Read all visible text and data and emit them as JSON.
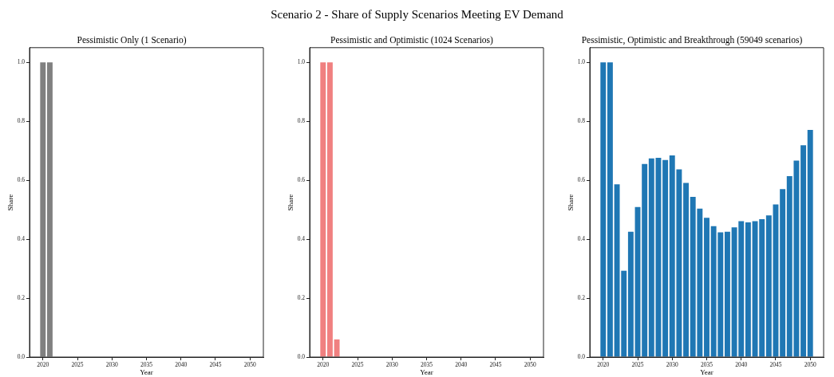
{
  "chart_data": [
    {
      "type": "other",
      "title": "Scenario 2 - Share of Supply Scenarios Meeting EV Demand"
    },
    {
      "type": "bar",
      "title": "Pessimistic Only (1 Scenario)",
      "xlabel": "Year",
      "ylabel": "Share",
      "x": [
        2020,
        2021,
        2022,
        2023,
        2024,
        2025,
        2026,
        2027,
        2028,
        2029,
        2030,
        2031,
        2032,
        2033,
        2034,
        2035,
        2036,
        2037,
        2038,
        2039,
        2040,
        2041,
        2042,
        2043,
        2044,
        2045,
        2046,
        2047,
        2048,
        2049,
        2050
      ],
      "values": [
        1,
        1,
        0,
        0,
        0,
        0,
        0,
        0,
        0,
        0,
        0,
        0,
        0,
        0,
        0,
        0,
        0,
        0,
        0,
        0,
        0,
        0,
        0,
        0,
        0,
        0,
        0,
        0,
        0,
        0,
        0
      ],
      "color": "#808080",
      "xlim": [
        2018.06,
        2051.94
      ],
      "xticks": [
        2020,
        2025,
        2030,
        2035,
        2040,
        2045,
        2050
      ],
      "ylim": [
        0,
        1.05
      ],
      "yticks": [
        {
          "value": 0,
          "label": "0.0"
        },
        {
          "value": 0.2,
          "label": "0.2"
        },
        {
          "value": 0.4,
          "label": "0.4"
        },
        {
          "value": 0.6,
          "label": "0.6"
        },
        {
          "value": 0.8,
          "label": "0.8"
        },
        {
          "value": 1,
          "label": "1.0"
        }
      ]
    },
    {
      "type": "bar",
      "title": "Pessimistic and Optimistic (1024 Scenarios)",
      "xlabel": "Year",
      "ylabel": "Share",
      "x": [
        2020,
        2021,
        2022,
        2023,
        2024,
        2025,
        2026,
        2027,
        2028,
        2029,
        2030,
        2031,
        2032,
        2033,
        2034,
        2035,
        2036,
        2037,
        2038,
        2039,
        2040,
        2041,
        2042,
        2043,
        2044,
        2045,
        2046,
        2047,
        2048,
        2049,
        2050
      ],
      "values": [
        1,
        1,
        0.06,
        0,
        0,
        0,
        0,
        0,
        0,
        0,
        0,
        0,
        0,
        0,
        0,
        0,
        0,
        0,
        0,
        0,
        0,
        0,
        0,
        0,
        0,
        0,
        0,
        0,
        0,
        0,
        0
      ],
      "color": "#f08080",
      "xlim": [
        2018.06,
        2051.94
      ],
      "xticks": [
        2020,
        2025,
        2030,
        2035,
        2040,
        2045,
        2050
      ],
      "ylim": [
        0,
        1.05
      ],
      "yticks": [
        {
          "value": 0,
          "label": "0.0"
        },
        {
          "value": 0.2,
          "label": "0.2"
        },
        {
          "value": 0.4,
          "label": "0.4"
        },
        {
          "value": 0.6,
          "label": "0.6"
        },
        {
          "value": 0.8,
          "label": "0.8"
        },
        {
          "value": 1,
          "label": "1.0"
        }
      ]
    },
    {
      "type": "bar",
      "title": "Pessimistic, Optimistic and Breakthrough (59049 scenarios)",
      "xlabel": "Year",
      "ylabel": "Share",
      "x": [
        2020,
        2021,
        2022,
        2023,
        2024,
        2025,
        2026,
        2027,
        2028,
        2029,
        2030,
        2031,
        2032,
        2033,
        2034,
        2035,
        2036,
        2037,
        2038,
        2039,
        2040,
        2041,
        2042,
        2043,
        2044,
        2045,
        2046,
        2047,
        2048,
        2049,
        2050
      ],
      "values": [
        1,
        1,
        0.586,
        0.293,
        0.425,
        0.509,
        0.655,
        0.674,
        0.676,
        0.669,
        0.684,
        0.637,
        0.591,
        0.544,
        0.504,
        0.473,
        0.444,
        0.423,
        0.425,
        0.44,
        0.461,
        0.457,
        0.461,
        0.468,
        0.481,
        0.518,
        0.57,
        0.614,
        0.667,
        0.719,
        0.771
      ],
      "color": "#1f77b4",
      "xlim": [
        2018.06,
        2051.94
      ],
      "xticks": [
        2020,
        2025,
        2030,
        2035,
        2040,
        2045,
        2050
      ],
      "ylim": [
        0,
        1.05
      ],
      "yticks": [
        {
          "value": 0,
          "label": "0.0"
        },
        {
          "value": 0.2,
          "label": "0.2"
        },
        {
          "value": 0.4,
          "label": "0.4"
        },
        {
          "value": 0.6,
          "label": "0.6"
        },
        {
          "value": 0.8,
          "label": "0.8"
        },
        {
          "value": 1,
          "label": "1.0"
        }
      ]
    }
  ]
}
